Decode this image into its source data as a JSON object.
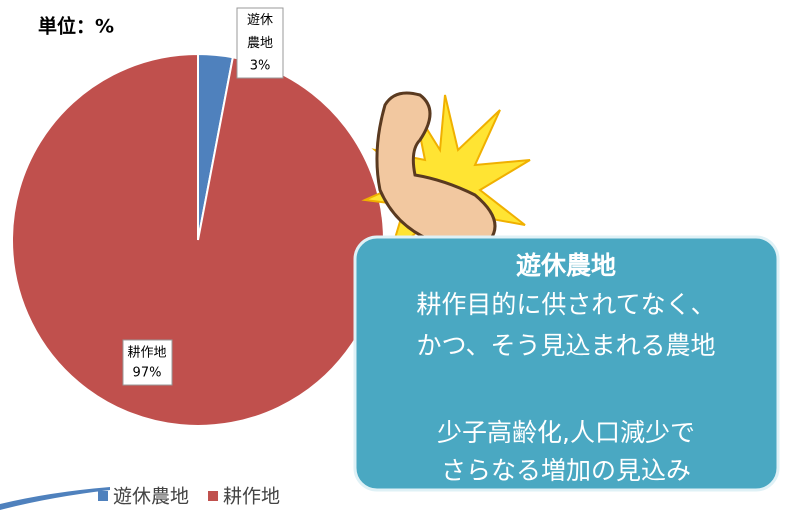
{
  "chart_data": {
    "type": "pie",
    "unit_label": "単位：%",
    "categories": [
      "遊休農地",
      "耕作地"
    ],
    "values": [
      3,
      97
    ],
    "value_labels": [
      "3%",
      "97%"
    ],
    "colors": [
      "#4f81bd",
      "#c0504d"
    ],
    "legend": "bottom",
    "annotations": [
      "遊休農地",
      "耕作目的に供されてなく、",
      "かつ、そう見込まれる農地",
      "少子高齢化,人口減少で",
      "さらなる増加の見込み"
    ]
  }
}
